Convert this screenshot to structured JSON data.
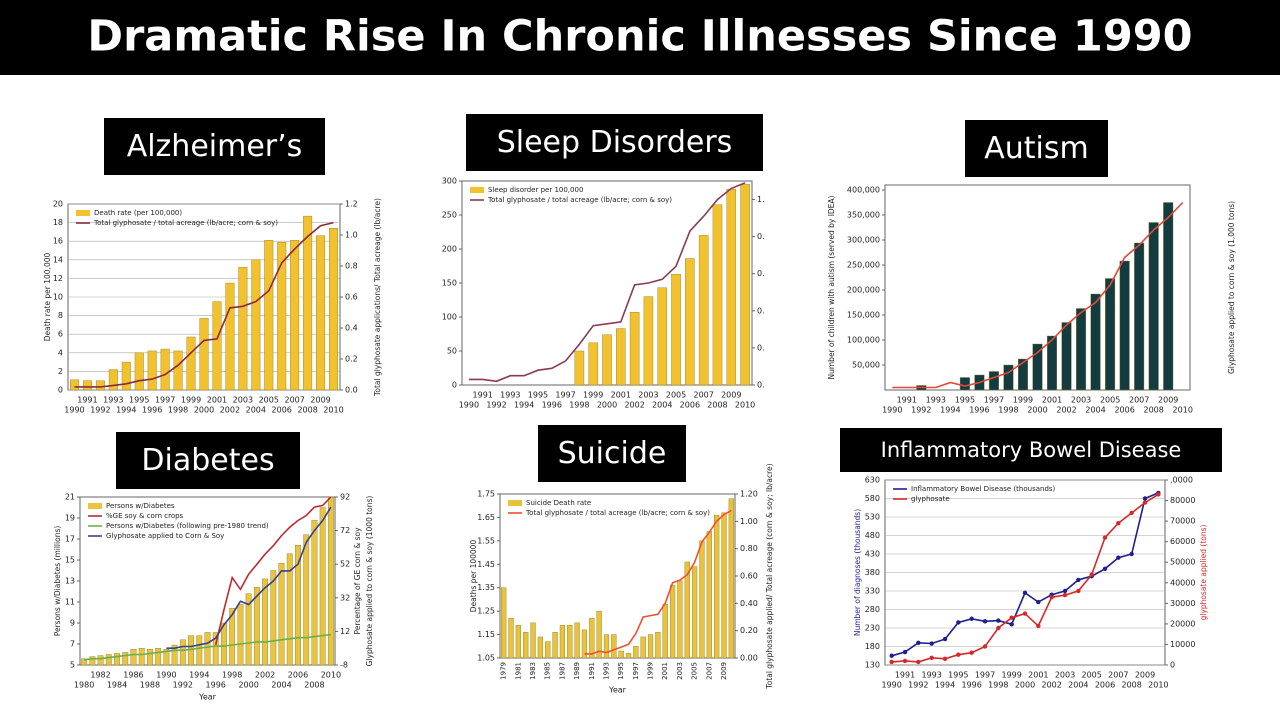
{
  "title": "Dramatic Rise In Chronic Illnesses Since 1990",
  "chart_data": [
    {
      "type": "combo",
      "title": "Alzheimer’s",
      "categories": [
        "1990",
        "1991",
        "1992",
        "1993",
        "1994",
        "1995",
        "1996",
        "1997",
        "1998",
        "1999",
        "2000",
        "2001",
        "2002",
        "2003",
        "2004",
        "2005",
        "2006",
        "2007",
        "2008",
        "2009",
        "2010"
      ],
      "series": [
        {
          "name": "Death rate (per 100,000)",
          "type": "bar",
          "color": "#f2c12e",
          "values": [
            1.1,
            1.0,
            1.0,
            2.2,
            3.0,
            4.0,
            4.2,
            4.4,
            4.2,
            5.7,
            7.7,
            9.5,
            11.5,
            13.2,
            14.0,
            16.1,
            15.9,
            16.1,
            18.7,
            16.6,
            17.4
          ]
        },
        {
          "name": "Total glyphosate / total acreage (lb/acre; corn & soy)",
          "type": "line",
          "axis": "y2",
          "color": "#8b2a3a",
          "values": [
            0.02,
            0.02,
            0.02,
            0.03,
            0.04,
            0.06,
            0.07,
            0.1,
            0.16,
            0.24,
            0.32,
            0.33,
            0.53,
            0.54,
            0.57,
            0.64,
            0.82,
            0.91,
            0.99,
            1.06,
            1.08
          ]
        }
      ],
      "ylim": [
        0,
        20
      ],
      "yticks": [
        0,
        2,
        4,
        6,
        8,
        10,
        12,
        14,
        16,
        18,
        20
      ],
      "y2lim": [
        0,
        1.2
      ],
      "y2ticks": [
        {
          "value": 0,
          "label": "0.0"
        },
        0.2,
        0.4,
        0.6,
        0.8,
        {
          "value": 1,
          "label": "1.0"
        },
        1.2
      ],
      "ylabel": "Death rate per 100,000",
      "y2label": "Total glyphosate applications/ Total acreage (lb/acre)",
      "grid": true
    },
    {
      "type": "combo",
      "title": "Sleep Disorders",
      "categories": [
        "1990",
        "1991",
        "1992",
        "1993",
        "1994",
        "1995",
        "1996",
        "1997",
        "1998",
        "1999",
        "2000",
        "2001",
        "2002",
        "2003",
        "2004",
        "2005",
        "2006",
        "2007",
        "2008",
        "2009",
        "2010"
      ],
      "series": [
        {
          "name": "Sleep disorder per 100,000",
          "type": "bar",
          "color": "#f2c12e",
          "values": [
            null,
            null,
            null,
            null,
            null,
            null,
            null,
            null,
            50,
            62,
            74,
            83,
            107,
            130,
            143,
            163,
            186,
            220,
            265,
            288,
            295
          ]
        },
        {
          "name": "Total glyphosate / total acreage (lb/acre; corn & soy)",
          "type": "line",
          "axis": "y2",
          "color": "#8b3a52",
          "values": [
            0.03,
            0.03,
            0.02,
            0.05,
            0.05,
            0.08,
            0.09,
            0.13,
            0.22,
            0.32,
            0.33,
            0.34,
            0.54,
            0.55,
            0.57,
            0.64,
            0.83,
            0.91,
            1.0,
            1.06,
            1.09
          ]
        }
      ],
      "ylim": [
        0,
        300
      ],
      "yticks": [
        0,
        50,
        100,
        150,
        200,
        250,
        300
      ],
      "y2lim": [
        0,
        1.1
      ],
      "y2ticks": [
        {
          "value": 0,
          "label": "0."
        },
        {
          "value": 0.2,
          "label": "0."
        },
        {
          "value": 0.4,
          "label": "0."
        },
        {
          "value": 0.6,
          "label": "0."
        },
        {
          "value": 0.8,
          "label": "0."
        },
        {
          "value": 1,
          "label": "1."
        }
      ],
      "grid": false
    },
    {
      "type": "combo",
      "title": "Autism",
      "categories": [
        "1990",
        "1991",
        "1992",
        "1993",
        "1994",
        "1995",
        "1996",
        "1997",
        "1998",
        "1999",
        "2000",
        "2001",
        "2002",
        "2003",
        "2004",
        "2005",
        "2006",
        "2007",
        "2008",
        "2009",
        "2010"
      ],
      "series": [
        {
          "type": "bar",
          "color": "#123c40",
          "values": [
            null,
            null,
            9000,
            null,
            null,
            25000,
            30000,
            37000,
            50000,
            62000,
            92000,
            108000,
            135000,
            163000,
            192000,
            223000,
            258000,
            294000,
            335000,
            375000,
            null
          ]
        },
        {
          "type": "line",
          "color": "#e0483a",
          "values": [
            5000,
            5000,
            5000,
            5000,
            15000,
            8000,
            15000,
            25000,
            35000,
            55000,
            75000,
            100000,
            130000,
            155000,
            175000,
            210000,
            265000,
            290000,
            320000,
            345000,
            375000
          ]
        }
      ],
      "ylim": [
        0,
        410000
      ],
      "yticks": [
        {
          "value": 50000,
          "label": "50,000"
        },
        {
          "value": 100000,
          "label": "100,000"
        },
        {
          "value": 150000,
          "label": "150,000"
        },
        {
          "value": 200000,
          "label": "200,000"
        },
        {
          "value": 250000,
          "label": "250,000"
        },
        {
          "value": 300000,
          "label": "300,000"
        },
        {
          "value": 350000,
          "label": "350,000"
        },
        {
          "value": 400000,
          "label": "400,000"
        }
      ],
      "ylabel": "Number of children with autism (served by IDEA)",
      "y2label": "Glyphosate applied to corn & soy (1,000 tons)",
      "grid": false
    },
    {
      "type": "combo",
      "title": "Diabetes",
      "categories": [
        "1980",
        null,
        "1982",
        null,
        "1984",
        null,
        "1986",
        null,
        "1988",
        null,
        "1990",
        null,
        "1992",
        null,
        "1994",
        null,
        "1996",
        null,
        "1998",
        null,
        "2000",
        null,
        "2002",
        null,
        "2004",
        null,
        "2006",
        null,
        "2008",
        null,
        "2010"
      ],
      "series": [
        {
          "name": "Persons w/Diabetes",
          "type": "bar",
          "color": "#e8c440",
          "values": [
            5.6,
            5.8,
            5.9,
            6.0,
            6.1,
            6.2,
            6.5,
            6.6,
            6.5,
            6.6,
            6.5,
            6.9,
            7.4,
            7.8,
            7.8,
            8.1,
            8.1,
            9.0,
            10.4,
            10.8,
            11.8,
            12.4,
            13.2,
            14.0,
            14.7,
            15.6,
            16.4,
            17.4,
            18.8,
            20.0,
            21.0
          ]
        },
        {
          "name": "%GE soy & corn crops",
          "type": "line",
          "axis": "y2",
          "color": "#c0282d",
          "values": [
            null,
            null,
            null,
            null,
            null,
            null,
            null,
            null,
            null,
            null,
            null,
            null,
            null,
            null,
            null,
            null,
            4,
            25,
            44,
            37,
            46,
            52,
            58,
            63,
            69,
            74,
            78,
            81,
            86,
            87,
            92
          ]
        },
        {
          "name": "Persons w/Diabetes (following pre-1980 trend)",
          "type": "line",
          "color": "#6ab04c",
          "values": [
            5.5,
            5.6,
            5.6,
            5.7,
            5.8,
            5.9,
            6.0,
            6.0,
            6.1,
            6.2,
            6.3,
            6.4,
            6.4,
            6.5,
            6.6,
            6.7,
            6.8,
            6.8,
            6.9,
            7.0,
            7.1,
            7.2,
            7.2,
            7.3,
            7.4,
            7.5,
            7.6,
            7.6,
            7.7,
            7.8,
            7.9
          ]
        },
        {
          "name": "Glyphosate applied to Corn & Soy",
          "type": "line",
          "axis": "y2",
          "color": "#3b3f8c",
          "values": [
            null,
            null,
            null,
            null,
            null,
            null,
            null,
            null,
            null,
            null,
            2,
            2,
            3,
            3,
            4,
            5,
            8,
            16,
            22,
            30,
            28,
            33,
            38,
            42,
            48,
            48,
            52,
            65,
            72,
            78,
            86
          ]
        }
      ],
      "ylim": [
        5,
        21
      ],
      "yticks": [
        5,
        7,
        9,
        11,
        13,
        15,
        17,
        19,
        21
      ],
      "y2lim": [
        -8,
        92
      ],
      "y2ticks": [
        -8,
        12,
        32,
        52,
        72,
        92
      ],
      "ylabel": "Persons w/Diabetes (millions)",
      "y2label": [
        "Percentage of GE corn & soy",
        "Glyphosate applied to corn & soy (1000 tons)"
      ],
      "xlabel": "Year",
      "grid": false
    },
    {
      "type": "combo",
      "title": "Suicide",
      "categories": [
        "1979",
        null,
        "1981",
        null,
        "1983",
        null,
        "1985",
        null,
        "1987",
        null,
        "1989",
        null,
        "1991",
        null,
        "1993",
        null,
        "1995",
        null,
        "1997",
        null,
        "1999",
        null,
        "2001",
        null,
        "2003",
        null,
        "2005",
        null,
        "2007",
        null,
        "2009",
        null
      ],
      "series": [
        {
          "name": "Suicide Death rate",
          "type": "bar",
          "color": "#e8c23a",
          "values": [
            1.35,
            1.22,
            1.19,
            1.16,
            1.2,
            1.14,
            1.12,
            1.16,
            1.19,
            1.19,
            1.2,
            1.17,
            1.22,
            1.25,
            1.15,
            1.15,
            1.08,
            1.07,
            1.1,
            1.14,
            1.15,
            1.16,
            1.28,
            1.36,
            1.38,
            1.46,
            1.44,
            1.55,
            1.59,
            1.66,
            1.67,
            1.73
          ]
        },
        {
          "name": "Total glyphosate / total acreage (lb/acre; corn & soy)",
          "type": "line",
          "axis": "y2",
          "color": "#f05030",
          "values": [
            null,
            null,
            null,
            null,
            null,
            null,
            null,
            null,
            null,
            null,
            null,
            0.03,
            0.03,
            0.05,
            0.04,
            0.06,
            0.08,
            0.1,
            0.18,
            0.3,
            0.31,
            0.32,
            0.4,
            0.55,
            0.57,
            0.61,
            0.7,
            0.85,
            0.92,
            1.0,
            1.05,
            1.08
          ]
        }
      ],
      "ylim": [
        1.05,
        1.75
      ],
      "yticks": [
        1.05,
        1.15,
        1.25,
        1.35,
        1.45,
        1.55,
        1.65,
        1.75
      ],
      "y2lim": [
        0,
        1.2
      ],
      "y2ticks": [
        {
          "value": 0,
          "label": "0.00"
        },
        {
          "value": 0.2,
          "label": "0.20"
        },
        {
          "value": 0.4,
          "label": "0.40"
        },
        {
          "value": 0.6,
          "label": "0.60"
        },
        {
          "value": 0.8,
          "label": "0.80"
        },
        {
          "value": 1,
          "label": "1.00"
        },
        {
          "value": 1.2,
          "label": "1.20"
        }
      ],
      "ylabel": "Deaths per 100000",
      "y2label": "Total glyphosate applied/ Total acreage (corn & soy; lb/acre)",
      "xlabel": "Year",
      "grid": false
    },
    {
      "type": "line",
      "title": "Inflammatory Bowel Disease",
      "categories": [
        "1990",
        "1991",
        "1992",
        "1993",
        "1994",
        "1995",
        "1996",
        "1997",
        "1998",
        "1999",
        "2000",
        "2001",
        "2002",
        "2003",
        "2004",
        "2005",
        "2006",
        "2007",
        "2008",
        "2009",
        "2010"
      ],
      "series": [
        {
          "name": "Inflammatory Bowel Disease (thousands)",
          "type": "line",
          "color": "#1f1f8f",
          "values": [
            155,
            165,
            190,
            188,
            200,
            245,
            255,
            248,
            250,
            240,
            325,
            300,
            320,
            330,
            360,
            370,
            390,
            420,
            430,
            580,
            595
          ]
        },
        {
          "name": "glyphosate",
          "type": "line",
          "axis": "y2",
          "color": "#d62828",
          "values": [
            1500,
            2000,
            1500,
            3500,
            3000,
            5000,
            6000,
            9000,
            18000,
            23000,
            25000,
            19000,
            33000,
            34000,
            36000,
            44000,
            62000,
            69000,
            74000,
            79000,
            83000
          ]
        }
      ],
      "ylim": [
        130,
        630
      ],
      "yticks": [
        130,
        180,
        230,
        280,
        330,
        380,
        430,
        480,
        530,
        580,
        630
      ],
      "y2lim": [
        0,
        90000
      ],
      "y2ticks": [
        0,
        10000,
        20000,
        30000,
        40000,
        50000,
        60000,
        70000,
        80000,
        {
          "value": 90000,
          "label": ",0000"
        }
      ],
      "ylabel": "Number of diagnoses (thousands)",
      "y2label": "glyphosate applied (tons)",
      "markers": true,
      "grid": true
    }
  ]
}
